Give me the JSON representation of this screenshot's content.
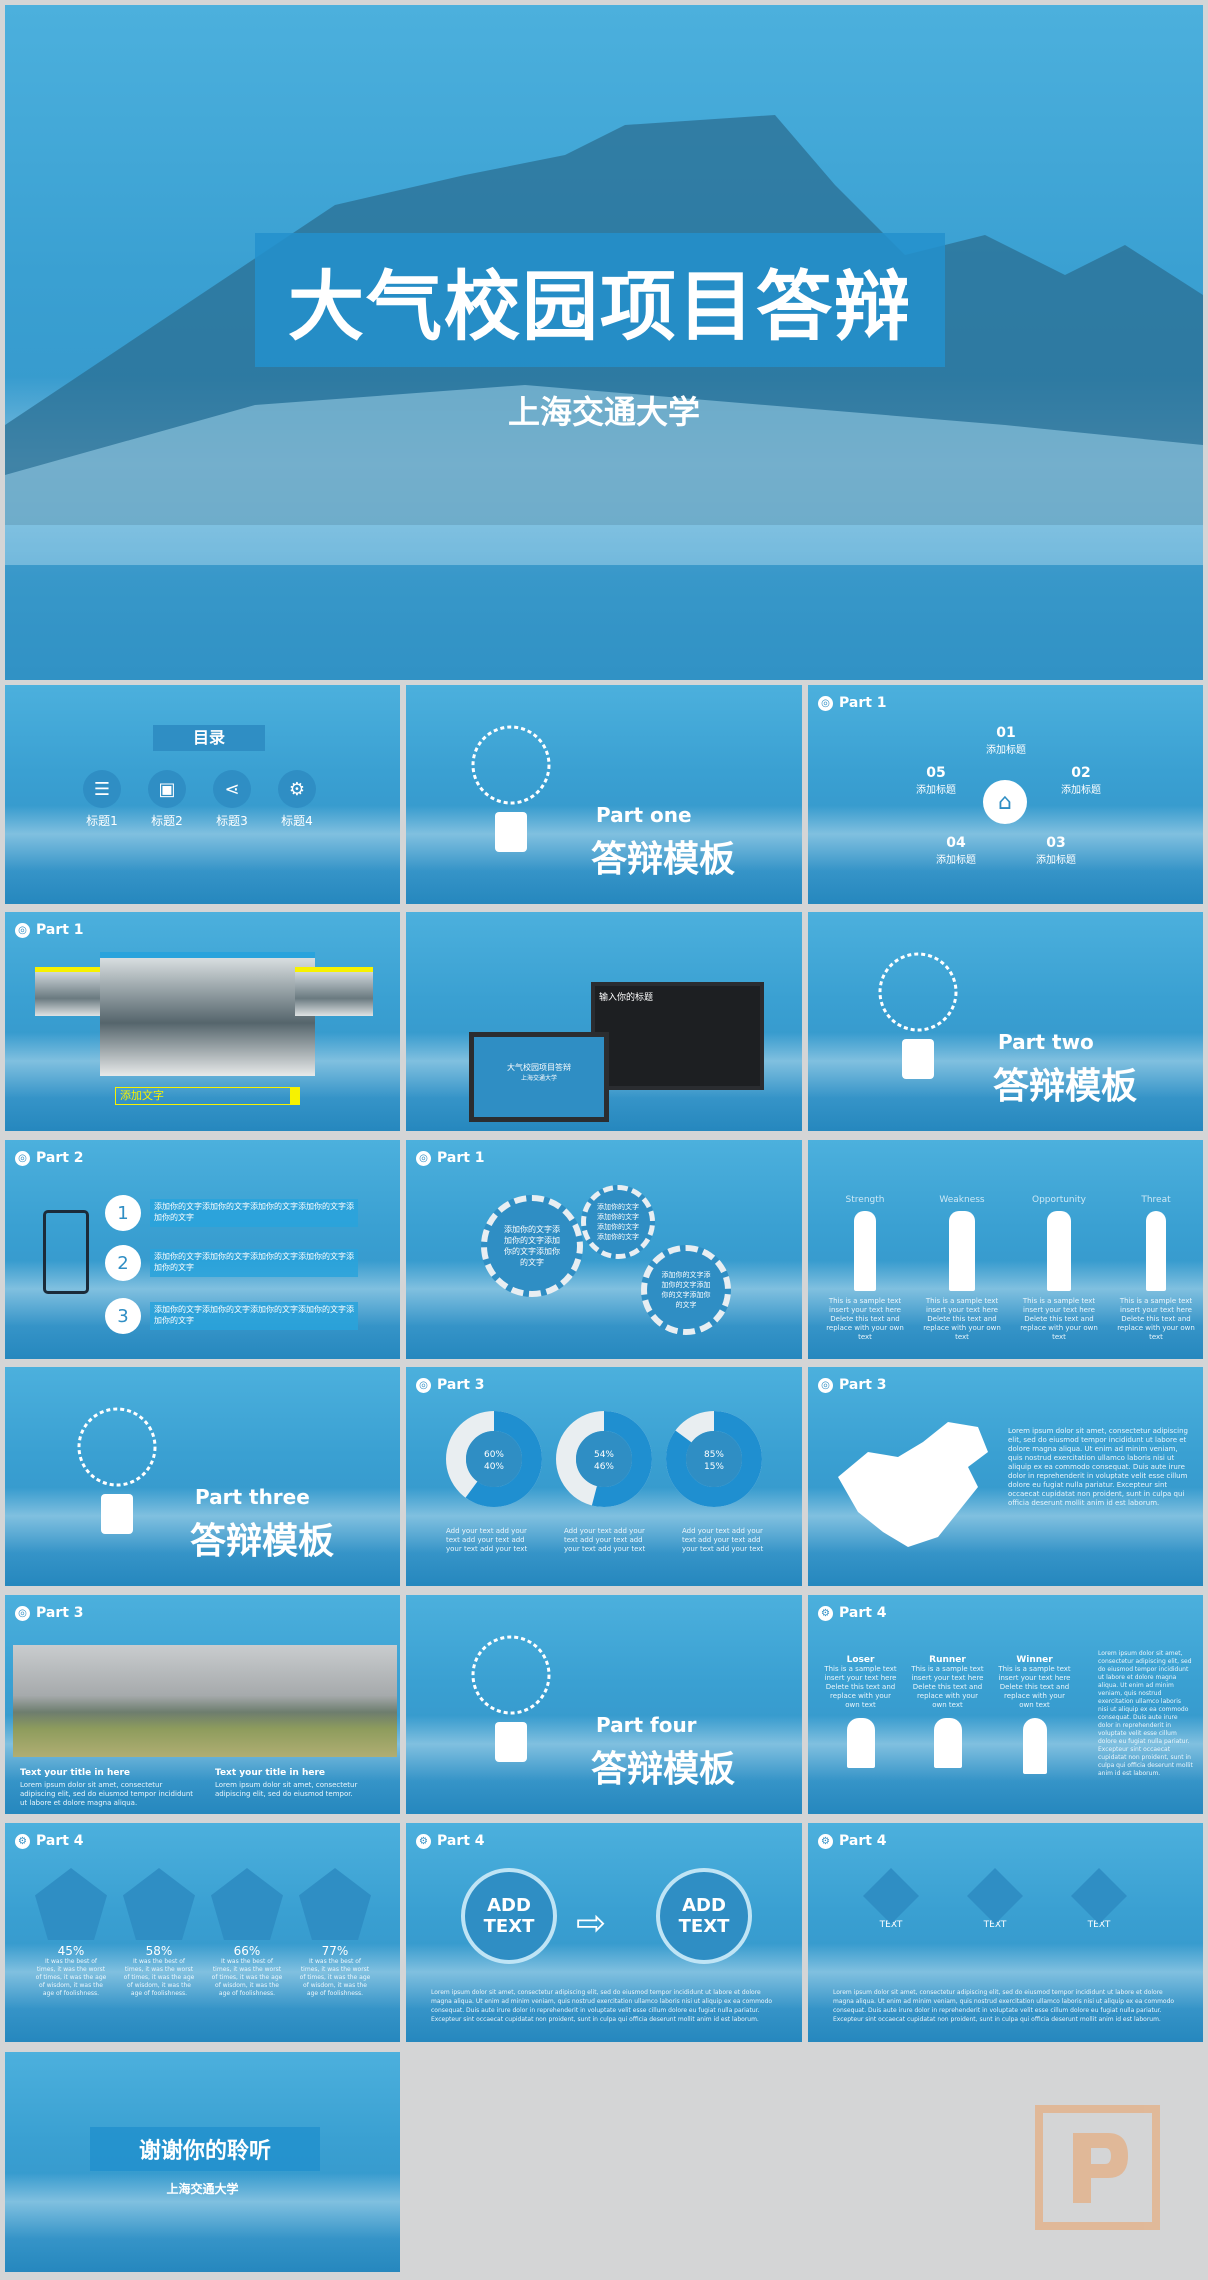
{
  "colors": {
    "accent": "#2f8ec4",
    "bright": "#29a3dc",
    "yellow": "#f7f200",
    "bg": "#d4d5d6",
    "logo": "#e8a66f"
  },
  "cover": {
    "title": "大气校园项目答辩",
    "subtitle": "上海交通大学"
  },
  "toc": {
    "title": "目录",
    "items": [
      "标题1",
      "标题2",
      "标题3",
      "标题4"
    ],
    "icons": [
      "document-icon",
      "presentation-icon",
      "share-icon",
      "gear-icon"
    ]
  },
  "part_one": {
    "en": "Part one",
    "cn": "答辩模板"
  },
  "part_two": {
    "en": "Part two",
    "cn": "答辩模板"
  },
  "part_three": {
    "en": "Part three",
    "cn": "答辩模板"
  },
  "part_four": {
    "en": "Part four",
    "cn": "答辩模板"
  },
  "labels": {
    "part1": "Part 1",
    "part2": "Part 2",
    "part3": "Part 3",
    "part4": "Part 4"
  },
  "pentagon": {
    "items": [
      {
        "num": "01",
        "text": "添加标题"
      },
      {
        "num": "02",
        "text": "添加标题"
      },
      {
        "num": "03",
        "text": "添加标题"
      },
      {
        "num": "04",
        "text": "添加标题"
      },
      {
        "num": "05",
        "text": "添加标题"
      }
    ]
  },
  "photo_slide": {
    "caption": "添加文字"
  },
  "devices": {
    "screen_title": "输入你的标题",
    "laptop_title": "大气校园项目答辩",
    "laptop_sub": "上海交通大学"
  },
  "steps": {
    "items": [
      {
        "num": "1",
        "text": "添加你的文字添加你的文字添加你的文字添加你的文字添加你的文字"
      },
      {
        "num": "2",
        "text": "添加你的文字添加你的文字添加你的文字添加你的文字添加你的文字"
      },
      {
        "num": "3",
        "text": "添加你的文字添加你的文字添加你的文字添加你的文字添加你的文字"
      }
    ]
  },
  "gears": {
    "text": "添加你的文字添加你的文字添加你的文字添加你的文字"
  },
  "swot": {
    "items": [
      {
        "title": "Strength",
        "text": "This is a sample text insert your text here Delete this text and replace with your own text"
      },
      {
        "title": "Weakness",
        "text": "This is a sample text insert your text here Delete this text and replace with your own text"
      },
      {
        "title": "Opportunity",
        "text": "This is a sample text insert your text here Delete this text and replace with your own text"
      },
      {
        "title": "Threat",
        "text": "This is a sample text insert your text here Delete this text and replace with your own text"
      }
    ]
  },
  "donuts": {
    "items": [
      {
        "top": "60%",
        "bottom": "40%",
        "fill": 0.6
      },
      {
        "top": "54%",
        "bottom": "46%",
        "fill": 0.54
      },
      {
        "top": "85%",
        "bottom": "15%",
        "fill": 0.85
      }
    ],
    "text": "Add your text add your text add your text add your text add your text"
  },
  "map_slide": {
    "text": "Lorem ipsum dolor sit amet, consectetur adipiscing elit, sed do eiusmod tempor incididunt ut labore et dolore magna aliqua. Ut enim ad minim veniam, quis nostrud exercitation ullamco laboris nisi ut aliquip ex ea commodo consequat. Duis aute irure dolor in reprehenderit in voluptate velit esse cillum dolore eu fugiat nulla pariatur. Excepteur sint occaecat cupidatat non proident, sunt in culpa qui officia deserunt mollit anim id est laborum."
  },
  "landscape": {
    "col1_title": "Text your title in here",
    "col1_text": "Lorem ipsum dolor sit amet, consectetur adipiscing elit, sed do eiusmod tempor incididunt ut labore et dolore magna aliqua.",
    "col2_title": "Text your title in here",
    "col2_text": "Lorem ipsum dolor sit amet, consectetur adipiscing elit, sed do eiusmod tempor."
  },
  "race": {
    "items": [
      {
        "title": "Loser",
        "text": "This is a sample text insert your text here Delete this text and replace with your own text"
      },
      {
        "title": "Runner",
        "text": "This is a sample text insert your text here Delete this text and replace with your own text"
      },
      {
        "title": "Winner",
        "text": "This is a sample text insert your text here Delete this text and replace with your own text"
      }
    ],
    "side": "Lorem ipsum dolor sit amet, consectetur adipiscing elit, sed do eiusmod tempor incididunt ut labore et dolore magna aliqua. Ut enim ad minim veniam, quis nostrud exercitation ullamco laboris nisi ut aliquip ex ea commodo consequat. Duis aute irure dolor in reprehenderit in voluptate velit esse cillum dolore eu fugiat nulla pariatur. Excepteur sint occaecat cupidatat non proident, sunt in culpa qui officia deserunt mollit anim id est laborum."
  },
  "hexstats": {
    "items": [
      {
        "pct": "45%",
        "value": 45,
        "text": "It was the best of times, it was the worst of times, it was the age of wisdom, it was the age of foolishness."
      },
      {
        "pct": "58%",
        "value": 58,
        "text": "It was the best of times, it was the worst of times, it was the age of wisdom, it was the age of foolishness."
      },
      {
        "pct": "66%",
        "value": 66,
        "text": "It was the best of times, it was the worst of times, it was the age of wisdom, it was the age of foolishness."
      },
      {
        "pct": "77%",
        "value": 77,
        "text": "It was the best of times, it was the worst of times, it was the age of wisdom, it was the age of foolishness."
      }
    ]
  },
  "addtext": {
    "left": "ADD TEXT",
    "right": "ADD TEXT",
    "text": "Lorem ipsum dolor sit amet, consectetur adipiscing elit, sed do eiusmod tempor incididunt ut labore et dolore magna aliqua. Ut enim ad minim veniam, quis nostrud exercitation ullamco laboris nisi ut aliquip ex ea commodo consequat. Duis aute irure dolor in reprehenderit in voluptate velit esse cillum dolore eu fugiat nulla pariatur. Excepteur sint occaecat cupidatat non proident, sunt in culpa qui officia deserunt mollit anim id est laborum."
  },
  "diamonds": {
    "items": [
      "TEXT",
      "TEXT",
      "TEXT"
    ],
    "text": "Lorem ipsum dolor sit amet, consectetur adipiscing elit, sed do eiusmod tempor incididunt ut labore et dolore magna aliqua. Ut enim ad minim veniam, quis nostrud exercitation ullamco laboris nisi ut aliquip ex ea commodo consequat. Duis aute irure dolor in reprehenderit in voluptate velit esse cillum dolore eu fugiat nulla pariatur. Excepteur sint occaecat cupidatat non proident, sunt in culpa qui officia deserunt mollit anim id est laborum."
  },
  "thanks": {
    "title": "谢谢你的聆听",
    "subtitle": "上海交通大学"
  }
}
